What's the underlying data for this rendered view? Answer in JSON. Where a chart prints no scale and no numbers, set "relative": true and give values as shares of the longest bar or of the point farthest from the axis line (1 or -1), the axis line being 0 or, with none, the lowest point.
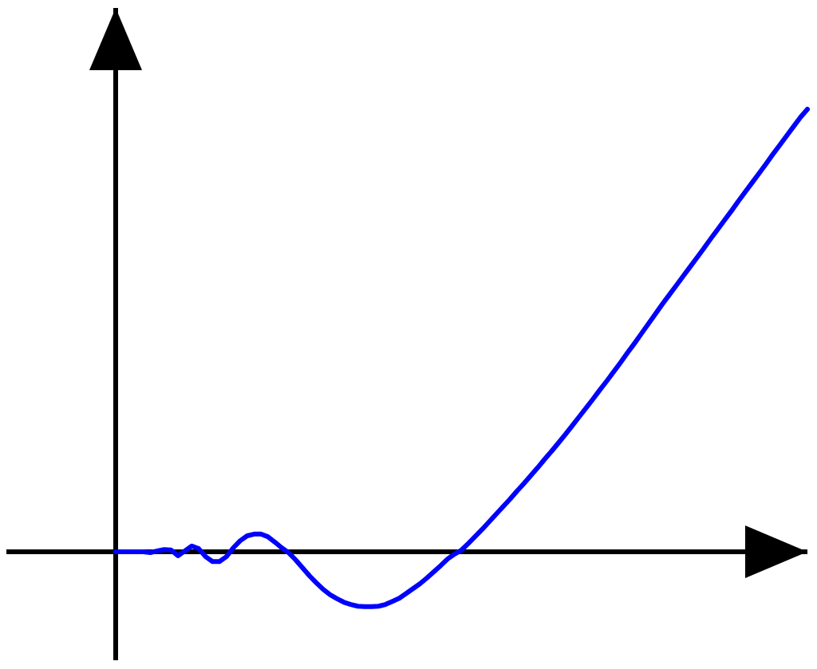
{
  "chart_data": {
    "type": "line",
    "relative": true,
    "color": "#0000ff",
    "line_style": "solid",
    "categories": [
      null,
      null,
      null,
      null,
      null,
      null,
      null,
      null,
      null,
      null,
      null,
      null,
      null,
      null,
      null,
      null,
      null,
      null,
      null,
      null,
      null,
      null,
      null,
      null,
      null,
      null,
      null,
      null,
      null,
      null,
      null,
      null,
      null,
      null,
      null,
      null,
      null,
      null,
      null,
      null,
      null,
      null,
      null,
      null,
      null,
      null,
      null,
      null,
      null,
      null,
      null,
      null,
      null,
      null,
      null,
      null,
      null,
      null,
      null,
      null,
      null,
      null,
      null,
      null,
      null,
      null,
      null,
      null,
      null,
      null,
      null,
      null,
      null,
      null,
      null,
      null,
      null,
      null,
      null,
      null,
      null,
      null,
      null,
      null,
      null,
      null,
      null,
      null,
      null,
      null,
      null,
      null,
      null,
      null,
      null,
      null,
      null,
      null,
      null,
      null,
      null
    ],
    "values": [
      0,
      0,
      0,
      0,
      0,
      -0.002,
      0.002,
      0.005,
      0.004,
      -0.009,
      0.002,
      0.013,
      0.007,
      -0.011,
      -0.022,
      -0.022,
      -0.011,
      0.009,
      0.025,
      0.036,
      0.04,
      0.04,
      0.034,
      0.022,
      0.009,
      -0.002,
      -0.018,
      -0.036,
      -0.054,
      -0.07,
      -0.085,
      -0.097,
      -0.106,
      -0.114,
      -0.119,
      -0.123,
      -0.124,
      -0.124,
      -0.123,
      -0.119,
      -0.112,
      -0.105,
      -0.094,
      -0.083,
      -0.072,
      -0.059,
      -0.045,
      -0.031,
      -0.016,
      -0.005,
      0.004,
      0.019,
      0.035,
      0.051,
      0.068,
      0.085,
      0.102,
      0.119,
      0.137,
      0.154,
      0.172,
      0.19,
      0.209,
      0.227,
      0.246,
      0.265,
      0.285,
      0.305,
      0.325,
      0.345,
      0.366,
      0.386,
      0.407,
      0.428,
      0.45,
      0.471,
      0.493,
      0.515,
      0.537,
      0.559,
      0.58,
      0.601,
      0.622,
      0.643,
      0.664,
      0.685,
      0.707,
      0.728,
      0.749,
      0.77,
      0.792,
      0.813,
      0.834,
      0.855,
      0.876,
      0.898,
      0.919,
      0.94,
      0.961,
      0.982,
      1.0
    ]
  }
}
